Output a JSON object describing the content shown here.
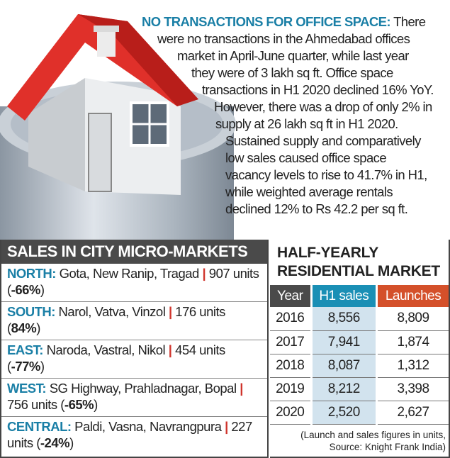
{
  "office": {
    "headline": "NO TRANSACTIONS FOR OFFICE SPACE:",
    "lines": [
      " There",
      "were no transactions in the Ahmedabad offices",
      "market in April-June quarter, while last year",
      "they were of 3 lakh sq ft. Office space",
      "transactions in H1 2020 declined 16% YoY.",
      "However, there was a drop of only 2% in",
      "supply at 26 lakh sq ft in H1 2020.",
      "Sustained supply and comparatively",
      "low sales caused office space",
      "vacancy levels to rise to 41.7% in H1,",
      "while weighted average rentals",
      "declined 12% to Rs 42.2 per sq ft."
    ]
  },
  "micro_markets": {
    "title": "SALES IN CITY MICRO-MARKETS",
    "rows": [
      {
        "region": "NORTH:",
        "areas": " Gota, New Ranip, Tragad ",
        "sep": "|",
        "units": " 907 units ",
        "change": "-66%"
      },
      {
        "region": "SOUTH:",
        "areas": " Narol, Vatva, Vinzol ",
        "sep": "|",
        "units": " 176 units ",
        "change": "84%"
      },
      {
        "region": "EAST:",
        "areas": " Naroda, Vastral, Nikol ",
        "sep": "|",
        "units": " 454 units ",
        "change": "-77%"
      },
      {
        "region": "WEST:",
        "areas": " SG Highway, Prahladnagar, Bopal ",
        "sep": "|",
        "units": " 756 units ",
        "change": "-65%"
      },
      {
        "region": "CENTRAL:",
        "areas": " Paldi, Vasna, Navrangpura ",
        "sep": "|",
        "units": " 227 units ",
        "change": "-24%"
      }
    ]
  },
  "residential": {
    "title_line1": "HALF-YEARLY",
    "title_line2": "RESIDENTIAL MARKET",
    "headers": [
      "Year",
      "H1 sales",
      "Launches"
    ],
    "rows": [
      [
        "2016",
        "8,556",
        "8,809"
      ],
      [
        "2017",
        "7,941",
        "1,874"
      ],
      [
        "2018",
        "8,087",
        "1,312"
      ],
      [
        "2019",
        "8,212",
        "3,398"
      ],
      [
        "2020",
        "2,520",
        "2,627"
      ]
    ],
    "note_line1": "(Launch and sales figures in units,",
    "note_line2": "Source: Knight Frank India)"
  },
  "colors": {
    "accent_blue": "#1a7fa6",
    "accent_red": "#d0342c",
    "launch_orange": "#d4502a",
    "header_gray": "#4a4a4a"
  }
}
